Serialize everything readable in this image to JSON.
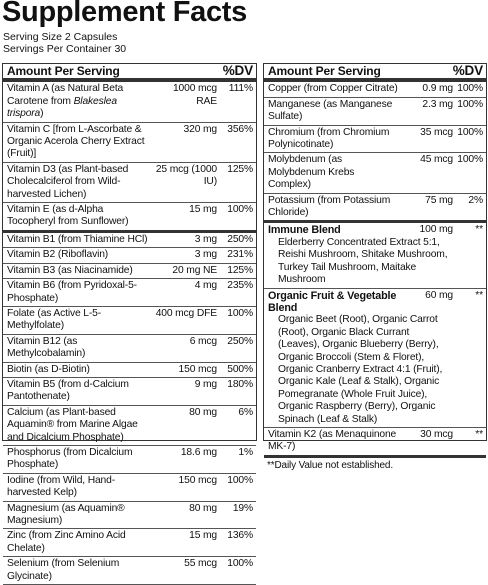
{
  "title": "Supplement Facts",
  "serving_size": "Serving Size 2 Capsules",
  "servings_per_container": "Servings Per Container 30",
  "left": {
    "header": {
      "amount": "Amount Per Serving",
      "dv": "%DV"
    },
    "groups": [
      [
        {
          "name": "Vitamin A (as Natural Beta Carotene from",
          "italic": "Blakeslea trispora",
          "name_end": ")",
          "amount": "1000 mcg RAE",
          "dv": "111%"
        },
        {
          "name": "Vitamin C [from L-Ascorbate & Organic Acerola Cherry Extract (Fruit)]",
          "amount": "320 mg",
          "dv": "356%"
        },
        {
          "name": "Vitamin D3 (as Plant-based Cholecalciferol from Wild-harvested Lichen)",
          "amount": "25 mcg (1000 IU)",
          "dv": "125%"
        },
        {
          "name": "Vitamin E (as d-Alpha Tocopheryl from Sunflower)",
          "amount": "15 mg",
          "dv": "100%"
        }
      ],
      [
        {
          "name": "Vitamin B1 (from Thiamine HCl)",
          "amount": "3 mg",
          "dv": "250%"
        },
        {
          "name": "Vitamin B2 (Riboflavin)",
          "amount": "3 mg",
          "dv": "231%"
        },
        {
          "name": "Vitamin B3 (as Niacinamide)",
          "amount": "20 mg NE",
          "dv": "125%"
        },
        {
          "name": "Vitamin B6 (from Pyridoxal-5-Phosphate)",
          "amount": "4 mg",
          "dv": "235%"
        },
        {
          "name": "Folate (as Active L-5-Methylfolate)",
          "amount": "400 mcg DFE",
          "dv": "100%"
        },
        {
          "name": "Vitamin B12 (as Methylcobalamin)",
          "amount": "6 mcg",
          "dv": "250%"
        },
        {
          "name": "Biotin (as D-Biotin)",
          "amount": "150 mcg",
          "dv": "500%"
        },
        {
          "name": "Vitamin B5 (from d-Calcium Pantothenate)",
          "amount": "9 mg",
          "dv": "180%"
        },
        {
          "name": "Calcium (as Plant-based Aquamin® from Marine Algae and Dicalcium Phosphate)",
          "amount": "80 mg",
          "dv": "6%"
        },
        {
          "name": "Phosphorus (from Dicalcium Phosphate)",
          "amount": "18.6 mg",
          "dv": "1%"
        },
        {
          "name": "Iodine (from Wild, Hand-harvested Kelp)",
          "amount": "150 mcg",
          "dv": "100%"
        },
        {
          "name": "Magnesium (as Aquamin® Magnesium)",
          "amount": "80 mg",
          "dv": "19%"
        },
        {
          "name": "Zinc (from Zinc Amino Acid Chelate)",
          "amount": "15 mg",
          "dv": "136%"
        },
        {
          "name": "Selenium (from Selenium Glycinate)",
          "amount": "55 mcg",
          "dv": "100%"
        }
      ]
    ]
  },
  "right": {
    "header": {
      "amount": "Amount Per Serving",
      "dv": "%DV"
    },
    "groups": [
      [
        {
          "name": "Copper (from Copper Citrate)",
          "amount": "0.9 mg",
          "dv": "100%"
        },
        {
          "name": "Manganese (as Manganese Sulfate)",
          "amount": "2.3 mg",
          "dv": "100%"
        },
        {
          "name": "Chromium (from Chromium Polynicotinate)",
          "amount": "35 mcg",
          "dv": "100%"
        },
        {
          "name": "Molybdenum (as Molybdenum Krebs Complex)",
          "amount": "45 mcg",
          "dv": "100%"
        },
        {
          "name": "Potassium (from Potassium Chloride)",
          "amount": "75 mg",
          "dv": "2%"
        }
      ],
      [
        {
          "name": "Immune Blend",
          "amount": "100 mg",
          "dv": "**",
          "description": "Elderberry Concentrated Extract 5:1, Reishi Mushroom, Shitake Mushroom, Turkey Tail Mushroom, Maitake Mushroom"
        },
        {
          "name": "Organic Fruit & Vegetable Blend",
          "amount": "60 mg",
          "dv": "**",
          "description": "Organic Beet (Root), Organic Carrot (Root), Organic Black Currant (Leaves), Organic Blueberry (Berry), Organic Broccoli (Stem & Floret), Organic Cranberry Extract 4:1 (Fruit), Organic Kale (Leaf & Stalk), Organic Pomegranate (Whole Fruit Juice), Organic Raspberry (Berry), Organic Spinach (Leaf & Stalk)"
        },
        {
          "name": "Vitamin K2 (as Menaquinone MK-7)",
          "amount": "30 mcg",
          "dv": "**"
        }
      ]
    ],
    "footnote": "**Daily Value not established."
  }
}
